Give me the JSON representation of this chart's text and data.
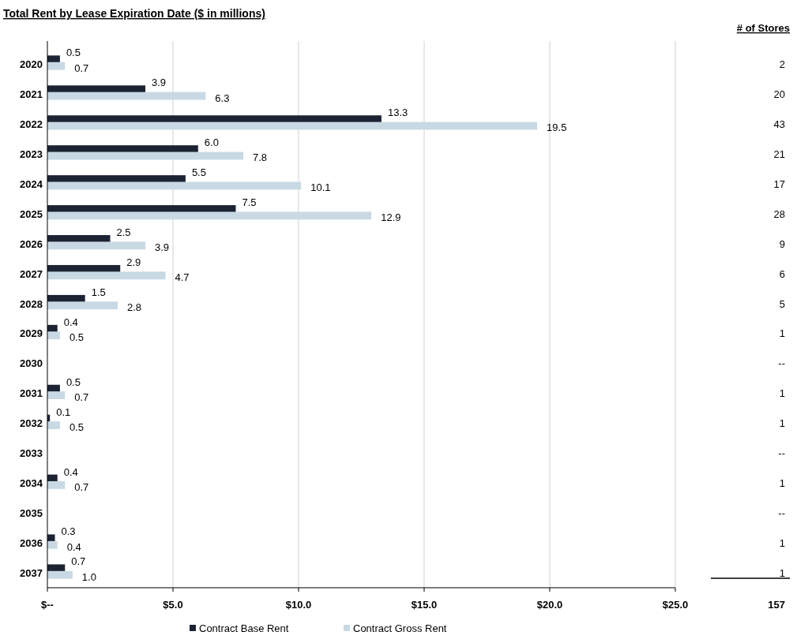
{
  "chart_data": {
    "type": "bar",
    "orientation": "horizontal",
    "title": "Total Rent by Lease Expiration Date ($ in millions)",
    "categories": [
      "2020",
      "2021",
      "2022",
      "2023",
      "2024",
      "2025",
      "2026",
      "2027",
      "2028",
      "2029",
      "2030",
      "2031",
      "2032",
      "2033",
      "2034",
      "2035",
      "2036",
      "2037"
    ],
    "series": [
      {
        "name": "Contract Base Rent",
        "color": "#1c2333",
        "values": [
          0.5,
          3.9,
          13.3,
          6.0,
          5.5,
          7.5,
          2.5,
          2.9,
          1.5,
          0.4,
          null,
          0.5,
          0.1,
          null,
          0.4,
          null,
          0.3,
          0.7
        ],
        "value_labels": [
          "0.5",
          "3.9",
          "13.3",
          "6.0",
          "5.5",
          "7.5",
          "2.5",
          "2.9",
          "1.5",
          "0.4",
          null,
          "0.5",
          "0.1",
          null,
          "0.4",
          null,
          "0.3",
          "0.7"
        ]
      },
      {
        "name": "Contract Gross Rent",
        "color": "#c9d9e3",
        "values": [
          0.7,
          6.3,
          19.5,
          7.8,
          10.1,
          12.9,
          3.9,
          4.7,
          2.8,
          0.5,
          null,
          0.7,
          0.5,
          null,
          0.7,
          null,
          0.4,
          1.0
        ],
        "value_labels": [
          "0.7",
          "6.3",
          "19.5",
          "7.8",
          "10.1",
          "12.9",
          "3.9",
          "4.7",
          "2.8",
          "0.5",
          null,
          "0.7",
          "0.5",
          null,
          "0.7",
          null,
          "0.4",
          "1.0"
        ]
      }
    ],
    "xlim": [
      0,
      25
    ],
    "xticks": [
      {
        "value": 0,
        "label": "$--"
      },
      {
        "value": 5,
        "label": "$5.0"
      },
      {
        "value": 10,
        "label": "$10.0"
      },
      {
        "value": 15,
        "label": "$15.0"
      },
      {
        "value": 20,
        "label": "$20.0"
      },
      {
        "value": 25,
        "label": "$25.0"
      }
    ],
    "grid": "x",
    "legend": "bottom",
    "annotations": [
      "# of Stores",
      "2",
      "20",
      "43",
      "21",
      "17",
      "28",
      "9",
      "6",
      "5",
      "1",
      "--",
      "1",
      "1",
      "--",
      "1",
      "--",
      "1",
      "1",
      "157"
    ]
  }
}
